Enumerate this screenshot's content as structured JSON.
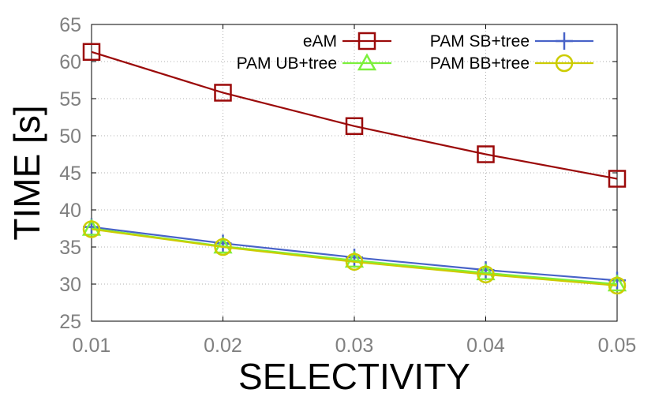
{
  "chart_data": {
    "type": "line",
    "xlabel": "SELECTIVITY",
    "ylabel": "TIME [s]",
    "x": [
      0.01,
      0.02,
      0.03,
      0.04,
      0.05
    ],
    "xticks": [
      "0.01",
      "0.02",
      "0.03",
      "0.04",
      "0.05"
    ],
    "yticks": [
      "25",
      "30",
      "35",
      "40",
      "45",
      "50",
      "55",
      "60",
      "65"
    ],
    "xlim": [
      0.01,
      0.05
    ],
    "ylim": [
      25,
      65
    ],
    "grid": true,
    "legend_position": "top-right",
    "series": [
      {
        "name": "eAM",
        "color": "#9b0a0a",
        "marker": "square",
        "values": [
          61.3,
          55.8,
          51.3,
          47.5,
          44.2
        ]
      },
      {
        "name": "PAM SB+tree",
        "color": "#4863c8",
        "marker": "plus",
        "values": [
          37.7,
          35.5,
          33.6,
          31.9,
          30.5
        ]
      },
      {
        "name": "PAM UB+tree",
        "color": "#7cf03c",
        "marker": "triangle",
        "values": [
          37.5,
          35.1,
          33.2,
          31.5,
          30.0
        ]
      },
      {
        "name": "PAM BB+tree",
        "color": "#cccc00",
        "marker": "circle",
        "values": [
          37.4,
          35.0,
          33.0,
          31.3,
          29.8
        ]
      }
    ]
  }
}
